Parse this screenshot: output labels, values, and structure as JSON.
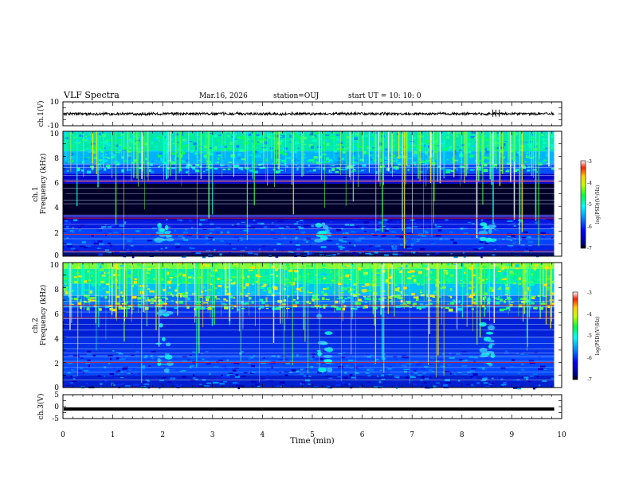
{
  "header": {
    "title": "VLF Spectra",
    "date": "Mar.16, 2026",
    "station": "station=OUJ",
    "start_ut": "start  UT =   10: 10: 0"
  },
  "chart_data": [
    {
      "id": "ch1_waveform",
      "type": "line",
      "ylabel": "ch.1(V)",
      "ylim": [
        -10,
        10
      ],
      "yticks": [
        "10",
        "-10"
      ],
      "baseline": 0,
      "noise_amplitude": 1,
      "xlim": [
        0,
        9.85
      ]
    },
    {
      "id": "ch1_spectrogram",
      "type": "heatmap",
      "ylabel_top": "ch.1",
      "ylabel": "Frequency  (kHz)",
      "ylim": [
        0,
        10
      ],
      "yticks": [
        "0",
        "2",
        "4",
        "6",
        "8",
        "10"
      ],
      "xlim": [
        0,
        9.85
      ],
      "hum_lines_khz": [
        0.35,
        0.9,
        1.4,
        1.75,
        2.2,
        2.55,
        3.15,
        3.3,
        4.2,
        4.5,
        5.0,
        5.45,
        5.95,
        6.1,
        6.45,
        7.1,
        7.35
      ],
      "red_lines_khz": [
        6.0,
        3.05,
        1.75,
        0.4
      ],
      "whistler_times_min": [
        1.9,
        5.1,
        8.4
      ],
      "colorbar": {
        "label": "log(PSD)(V²/Hz)",
        "ticks": [
          "-3",
          "-4",
          "-5",
          "-6",
          "-7"
        ],
        "range": [
          -7,
          -3
        ]
      }
    },
    {
      "id": "ch2_spectrogram",
      "type": "heatmap",
      "ylabel_top": "ch.2",
      "ylabel": "Frequency  (kHz)",
      "ylim": [
        0,
        10
      ],
      "yticks": [
        "0",
        "2",
        "4",
        "6",
        "8",
        "10"
      ],
      "xlim": [
        0,
        9.85
      ],
      "hum_lines_khz": [
        0.6,
        1.25,
        1.6,
        2.1,
        2.45,
        2.75,
        3.1,
        3.55,
        4.05,
        4.6,
        5.05,
        5.5,
        6.05,
        6.45,
        6.9,
        7.35
      ],
      "red_lines_khz": [
        6.6,
        5.6,
        2.0
      ],
      "whistler_times_min": [
        1.9,
        5.1,
        8.4
      ],
      "colorbar": {
        "label": "log(PSD)(V²/Hz)",
        "ticks": [
          "-3",
          "-4",
          "-5",
          "-6",
          "-7"
        ],
        "range": [
          -7,
          -3
        ]
      }
    },
    {
      "id": "ch3_waveform",
      "type": "line",
      "ylabel": "ch.3(V)",
      "ylim": [
        -5,
        5
      ],
      "yticks": [
        "5",
        "0",
        "-5"
      ],
      "baseline": -1,
      "xlim": [
        0,
        9.85
      ],
      "xlabel": "Time  (min)",
      "xticks": [
        "0",
        "1",
        "2",
        "3",
        "4",
        "5",
        "6",
        "7",
        "8",
        "9",
        "10"
      ],
      "xrange": [
        0,
        10
      ]
    }
  ]
}
